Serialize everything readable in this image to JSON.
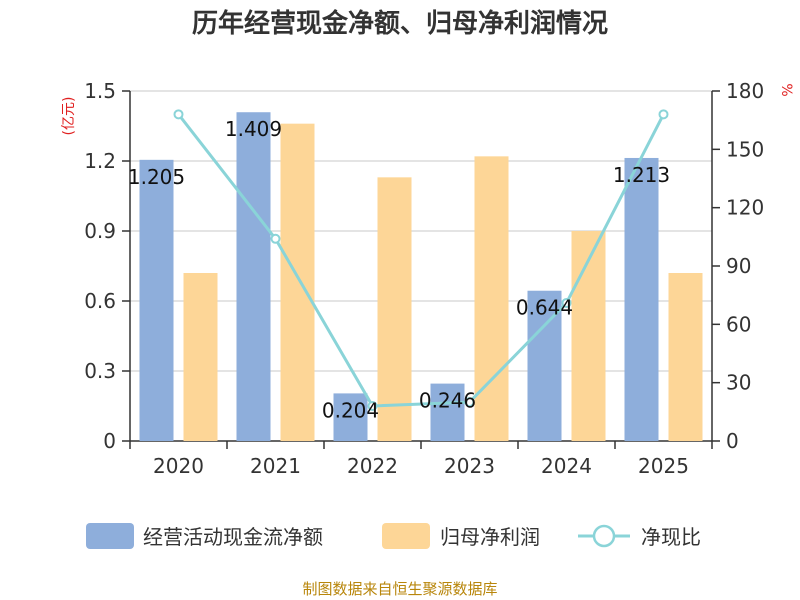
{
  "colors": {
    "ocf": "#8EAEDB",
    "np": "#FDD697",
    "ratio": "#8AD4D8",
    "axis": "#333333",
    "grid": "#C8C8C8",
    "unit": "#E02020",
    "source": "#B8860B"
  },
  "chart_data": {
    "type": "bar",
    "title": "历年经营现金净额、归母净利润情况",
    "categories": [
      "2020",
      "2021",
      "2022",
      "2023",
      "2024",
      "2025"
    ],
    "left_unit": "(亿元)",
    "right_unit": "%",
    "ylim": [
      0,
      1.5
    ],
    "yticks": [
      "0",
      "0.3",
      "0.6",
      "0.9",
      "1.2",
      "1.5"
    ],
    "ylim_right": [
      0,
      180
    ],
    "yticks_right": [
      "0",
      "30",
      "60",
      "90",
      "120",
      "150",
      "180"
    ],
    "grid": true,
    "legend_position": "bottom",
    "series": [
      {
        "name": "经营活动现金流净额",
        "type": "bar",
        "values": [
          1.205,
          1.409,
          0.204,
          0.246,
          0.644,
          1.213
        ],
        "data_labels": [
          "1.205",
          "1.409",
          "0.204",
          "0.246",
          "0.644",
          "1.213"
        ]
      },
      {
        "name": "归母净利润",
        "type": "bar",
        "values": [
          0.72,
          1.36,
          1.13,
          1.22,
          0.9,
          0.72
        ]
      },
      {
        "name": "净现比",
        "type": "line",
        "axis": "right",
        "values": [
          168,
          104,
          18,
          20,
          71,
          168
        ]
      }
    ]
  },
  "source_text": "制图数据来自恒生聚源数据库"
}
